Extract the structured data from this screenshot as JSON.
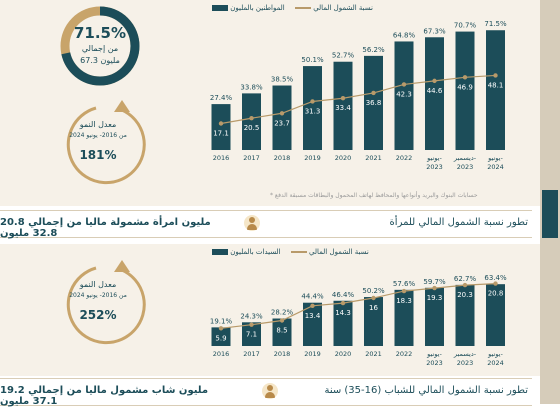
{
  "chart_data": [
    {
      "type": "bar",
      "categories": [
        "2016",
        "2017",
        "2018",
        "2019",
        "2020",
        "2021",
        "2022",
        "يونيو- 2023",
        "ديسمبر- 2023",
        "يونيو- 2024"
      ],
      "series": [
        {
          "name": "نسبة الشمول المالي",
          "values": [
            27.4,
            33.8,
            38.5,
            50.1,
            52.7,
            56.2,
            64.8,
            67.3,
            70.7,
            71.5
          ],
          "unit": "%"
        },
        {
          "name": "المواطنين بالمليون",
          "values": [
            17.1,
            20.5,
            23.7,
            31.3,
            33.4,
            36.8,
            42.3,
            44.6,
            46.9,
            48.1
          ],
          "type": "line"
        }
      ],
      "ylim": [
        0,
        80
      ],
      "legend": "top"
    },
    {
      "type": "bar",
      "categories": [
        "2016",
        "2017",
        "2018",
        "2019",
        "2020",
        "2021",
        "2022",
        "يونيو- 2023",
        "ديسمبر- 2023",
        "يونيو- 2024"
      ],
      "series": [
        {
          "name": "نسبة الشمول المالي",
          "values": [
            19.1,
            24.3,
            28.2,
            44.4,
            46.4,
            50.2,
            57.6,
            59.7,
            62.7,
            63.4
          ],
          "unit": "%"
        },
        {
          "name": "السيدات بالمليون",
          "values": [
            5.9,
            7.1,
            8.5,
            13.4,
            14.3,
            16.0,
            18.3,
            19.3,
            20.3,
            20.8
          ],
          "type": "line"
        }
      ],
      "ylim": [
        0,
        80
      ],
      "legend": "top"
    }
  ],
  "colors": {
    "bar": "#1c4d59",
    "line": "#b89a6a",
    "gold": "#c8a46a",
    "panel": "#f6f1e8"
  },
  "kpi1": {
    "pct": "71.5%",
    "from_total": "من إجمالي",
    "total": "67.3 مليون",
    "fill": 0.715
  },
  "growth1": {
    "label": "معدل النمو",
    "period": "من 2016- يونيو 2024",
    "value": "181%"
  },
  "footnote": "* حسابات البنوك والبريد وأنواعها والمحافظ لهاتف المحمول والبطاقات مسبقة الدفع",
  "strip1": {
    "title": "تطور نسبة الشمول المالي للمرأة",
    "sub": "20.8 مليون امرأة مشمولة ماليا من إجمالي 32.8 مليون"
  },
  "growth2": {
    "label": "معدل النمو",
    "period": "من 2016- يونيو 2024",
    "value": "252%"
  },
  "strip2": {
    "title": "تطور نسبة الشمول المالي للشباب (16-35) سنة",
    "sub": "19.2 مليون شاب مشمول ماليا من إجمالي 37.1 مليون"
  }
}
